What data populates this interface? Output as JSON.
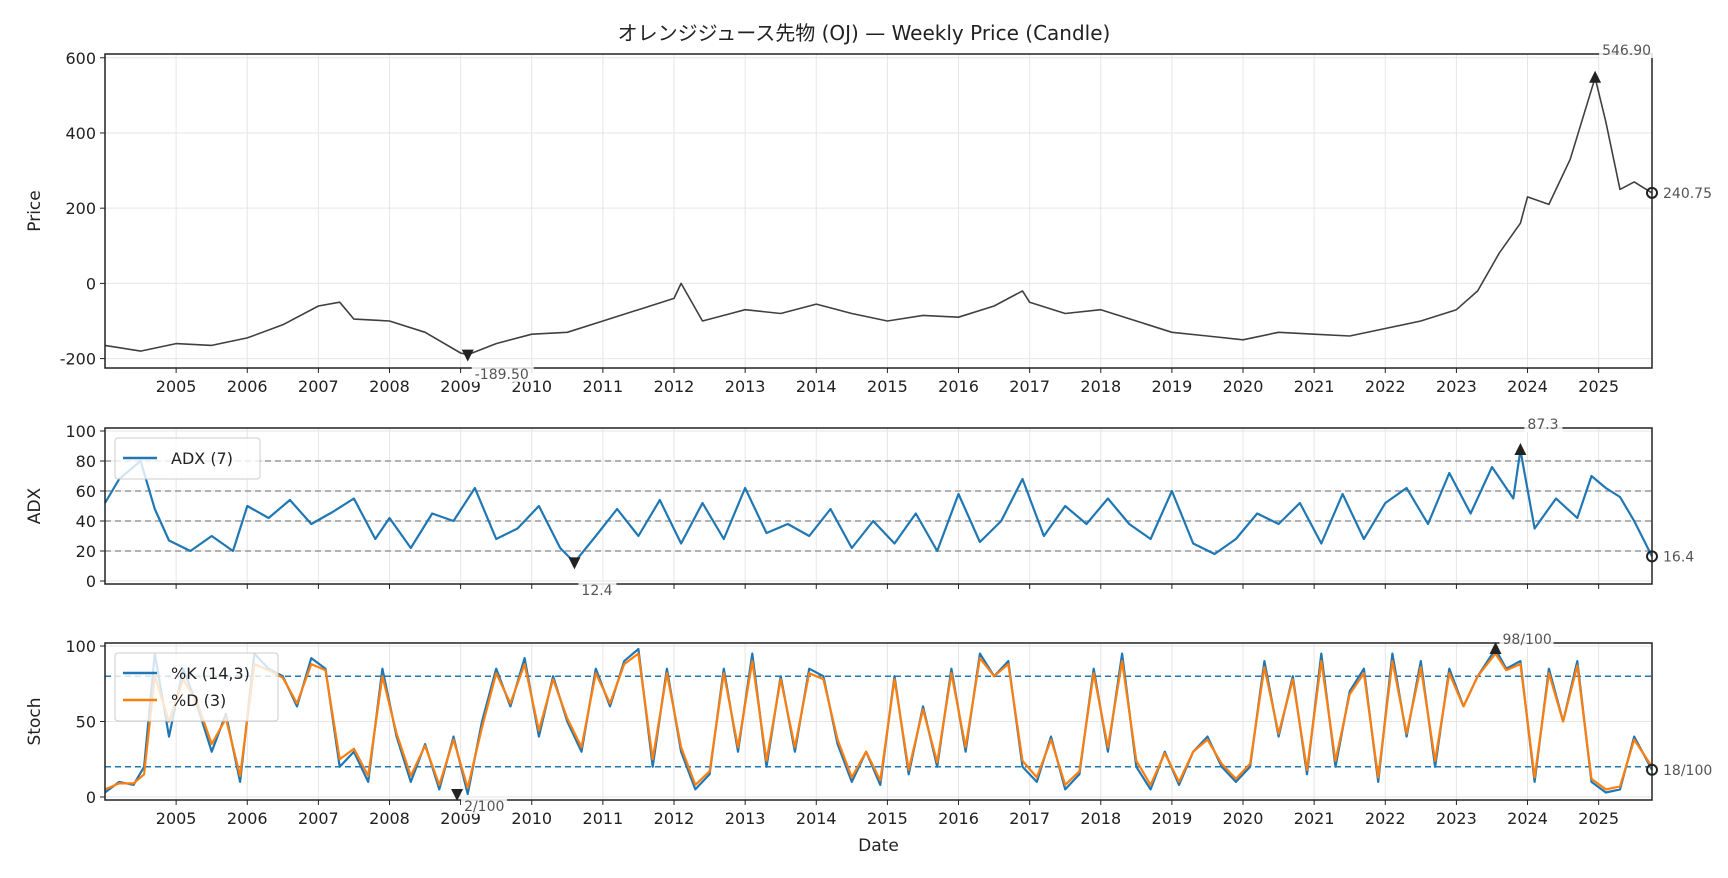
{
  "chart_data": [
    {
      "id": "price",
      "type": "line",
      "title": "オレンジジュース先物 (OJ) — Weekly Price (Candle)",
      "xlabel": "",
      "ylabel": "Price",
      "xlim": [
        2004.0,
        2025.75
      ],
      "ylim": [
        -225,
        610
      ],
      "yticks": [
        -200,
        0,
        200,
        400,
        600
      ],
      "ytick_labels": [
        "-200",
        "0",
        "200",
        "400",
        "600"
      ],
      "xticks": [
        2005,
        2006,
        2007,
        2008,
        2009,
        2010,
        2011,
        2012,
        2013,
        2014,
        2015,
        2016,
        2017,
        2018,
        2019,
        2020,
        2021,
        2022,
        2023,
        2024,
        2025
      ],
      "xtick_labels": [
        "2005",
        "2006",
        "2007",
        "2008",
        "2009",
        "2010",
        "2011",
        "2012",
        "2013",
        "2014",
        "2015",
        "2016",
        "2017",
        "2018",
        "2019",
        "2020",
        "2021",
        "2022",
        "2023",
        "2024",
        "2025"
      ],
      "grid": true,
      "color": "#404040",
      "series": [
        {
          "name": "OJ",
          "x": [
            2004.0,
            2004.5,
            2005.0,
            2005.5,
            2006.0,
            2006.5,
            2007.0,
            2007.3,
            2007.5,
            2008.0,
            2008.5,
            2009.0,
            2009.1,
            2009.5,
            2010.0,
            2010.5,
            2011.0,
            2011.5,
            2012.0,
            2012.1,
            2012.4,
            2012.8,
            2013.0,
            2013.5,
            2014.0,
            2014.5,
            2015.0,
            2015.5,
            2016.0,
            2016.5,
            2016.9,
            2017.0,
            2017.5,
            2018.0,
            2018.5,
            2019.0,
            2019.5,
            2020.0,
            2020.5,
            2021.0,
            2021.5,
            2022.0,
            2022.5,
            2023.0,
            2023.3,
            2023.6,
            2023.9,
            2024.0,
            2024.3,
            2024.6,
            2024.95,
            2025.1,
            2025.3,
            2025.5,
            2025.75
          ],
          "y": [
            -165,
            -180,
            -160,
            -165,
            -145,
            -110,
            -60,
            -50,
            -95,
            -100,
            -130,
            -185,
            -189.5,
            -160,
            -135,
            -130,
            -100,
            -70,
            -40,
            0,
            -100,
            -80,
            -70,
            -80,
            -55,
            -80,
            -100,
            -85,
            -90,
            -60,
            -20,
            -50,
            -80,
            -70,
            -100,
            -130,
            -140,
            -150,
            -130,
            -135,
            -140,
            -120,
            -100,
            -70,
            -20,
            80,
            160,
            230,
            210,
            330,
            546.9,
            430,
            250,
            270,
            240.75
          ]
        }
      ],
      "annotations": [
        {
          "label": "546.90",
          "x": 2024.95,
          "y": 546.9,
          "marker": "triangle-up",
          "kind": "max"
        },
        {
          "label": "-189.50",
          "x": 2009.1,
          "y": -189.5,
          "marker": "triangle-down",
          "kind": "min"
        },
        {
          "label": "240.75",
          "x": 2025.75,
          "y": 240.75,
          "marker": "circle",
          "kind": "last"
        }
      ]
    },
    {
      "id": "adx",
      "type": "line",
      "ylabel": "ADX",
      "xlim": [
        2004.0,
        2025.75
      ],
      "ylim": [
        -2,
        102
      ],
      "yticks": [
        0,
        20,
        40,
        60,
        80,
        100
      ],
      "ytick_labels": [
        "0",
        "20",
        "40",
        "60",
        "80",
        "100"
      ],
      "hlines": [
        20,
        40,
        60,
        80
      ],
      "grid": true,
      "legend": {
        "position": "top-left",
        "entries": [
          "ADX (7)"
        ]
      },
      "series": [
        {
          "name": "ADX (7)",
          "color": "#1f77b4",
          "x": [
            2004.0,
            2004.2,
            2004.5,
            2004.7,
            2004.9,
            2005.2,
            2005.5,
            2005.8,
            2006.0,
            2006.3,
            2006.6,
            2006.9,
            2007.2,
            2007.5,
            2007.8,
            2008.0,
            2008.3,
            2008.6,
            2008.9,
            2009.2,
            2009.5,
            2009.8,
            2010.1,
            2010.4,
            2010.6,
            2010.9,
            2011.2,
            2011.5,
            2011.8,
            2012.1,
            2012.4,
            2012.7,
            2013.0,
            2013.3,
            2013.6,
            2013.9,
            2014.2,
            2014.5,
            2014.8,
            2015.1,
            2015.4,
            2015.7,
            2016.0,
            2016.3,
            2016.6,
            2016.9,
            2017.2,
            2017.5,
            2017.8,
            2018.1,
            2018.4,
            2018.7,
            2019.0,
            2019.3,
            2019.6,
            2019.9,
            2020.2,
            2020.5,
            2020.8,
            2021.1,
            2021.4,
            2021.7,
            2022.0,
            2022.3,
            2022.6,
            2022.9,
            2023.2,
            2023.5,
            2023.8,
            2023.9,
            2024.1,
            2024.4,
            2024.7,
            2024.9,
            2025.1,
            2025.3,
            2025.5,
            2025.75
          ],
          "y": [
            52,
            68,
            80,
            48,
            27,
            20,
            30,
            20,
            50,
            42,
            54,
            38,
            46,
            55,
            28,
            42,
            22,
            45,
            40,
            62,
            28,
            35,
            50,
            22,
            12.4,
            30,
            48,
            30,
            54,
            25,
            52,
            28,
            62,
            32,
            38,
            30,
            48,
            22,
            40,
            25,
            45,
            20,
            58,
            26,
            40,
            68,
            30,
            50,
            38,
            55,
            38,
            28,
            60,
            25,
            18,
            28,
            45,
            38,
            52,
            25,
            58,
            28,
            52,
            62,
            38,
            72,
            45,
            76,
            55,
            87.3,
            35,
            55,
            42,
            70,
            62,
            56,
            40,
            16.4
          ]
        }
      ],
      "annotations": [
        {
          "label": "87.3",
          "x": 2023.9,
          "y": 87.3,
          "marker": "triangle-up",
          "kind": "max"
        },
        {
          "label": "12.4",
          "x": 2010.6,
          "y": 12.4,
          "marker": "triangle-down",
          "kind": "min"
        },
        {
          "label": "16.4",
          "x": 2025.75,
          "y": 16.4,
          "marker": "circle",
          "kind": "last"
        }
      ]
    },
    {
      "id": "stoch",
      "type": "line",
      "ylabel": "Stoch",
      "xlabel": "Date",
      "xlim": [
        2004.0,
        2025.75
      ],
      "ylim": [
        -2,
        102
      ],
      "yticks": [
        0,
        50,
        100
      ],
      "ytick_labels": [
        "0",
        "50",
        "100"
      ],
      "hlines": [
        20,
        80
      ],
      "grid": true,
      "xticks": [
        2005,
        2006,
        2007,
        2008,
        2009,
        2010,
        2011,
        2012,
        2013,
        2014,
        2015,
        2016,
        2017,
        2018,
        2019,
        2020,
        2021,
        2022,
        2023,
        2024,
        2025
      ],
      "xtick_labels": [
        "2005",
        "2006",
        "2007",
        "2008",
        "2009",
        "2010",
        "2011",
        "2012",
        "2013",
        "2014",
        "2015",
        "2016",
        "2017",
        "2018",
        "2019",
        "2020",
        "2021",
        "2022",
        "2023",
        "2024",
        "2025"
      ],
      "legend": {
        "position": "top-left",
        "entries": [
          "%K (14,3)",
          "%D (3)"
        ]
      },
      "series": [
        {
          "name": "%K (14,3)",
          "color": "#1f77b4",
          "x": [
            2004.0,
            2004.2,
            2004.4,
            2004.55,
            2004.7,
            2004.9,
            2005.1,
            2005.3,
            2005.5,
            2005.7,
            2005.9,
            2006.1,
            2006.3,
            2006.5,
            2006.7,
            2006.9,
            2007.1,
            2007.3,
            2007.5,
            2007.7,
            2007.9,
            2008.1,
            2008.3,
            2008.5,
            2008.7,
            2008.9,
            2009.1,
            2009.3,
            2009.5,
            2009.7,
            2009.9,
            2010.1,
            2010.3,
            2010.5,
            2010.7,
            2010.9,
            2011.1,
            2011.3,
            2011.5,
            2011.7,
            2011.9,
            2012.1,
            2012.3,
            2012.5,
            2012.7,
            2012.9,
            2013.1,
            2013.3,
            2013.5,
            2013.7,
            2013.9,
            2014.1,
            2014.3,
            2014.5,
            2014.7,
            2014.9,
            2015.1,
            2015.3,
            2015.5,
            2015.7,
            2015.9,
            2016.1,
            2016.3,
            2016.5,
            2016.7,
            2016.9,
            2017.1,
            2017.3,
            2017.5,
            2017.7,
            2017.9,
            2018.1,
            2018.3,
            2018.5,
            2018.7,
            2018.9,
            2019.1,
            2019.3,
            2019.5,
            2019.7,
            2019.9,
            2020.1,
            2020.3,
            2020.5,
            2020.7,
            2020.9,
            2021.1,
            2021.3,
            2021.5,
            2021.7,
            2021.9,
            2022.1,
            2022.3,
            2022.5,
            2022.7,
            2022.9,
            2023.1,
            2023.3,
            2023.55,
            2023.7,
            2023.9,
            2024.1,
            2024.3,
            2024.5,
            2024.7,
            2024.9,
            2025.1,
            2025.3,
            2025.5,
            2025.75
          ],
          "y": [
            3,
            10,
            8,
            20,
            95,
            40,
            85,
            60,
            30,
            55,
            10,
            95,
            85,
            80,
            60,
            92,
            85,
            20,
            30,
            10,
            85,
            40,
            10,
            35,
            5,
            40,
            2,
            50,
            85,
            60,
            92,
            40,
            80,
            50,
            30,
            85,
            60,
            90,
            98,
            20,
            85,
            30,
            5,
            15,
            85,
            30,
            95,
            20,
            80,
            30,
            85,
            80,
            35,
            10,
            30,
            8,
            80,
            15,
            60,
            20,
            85,
            30,
            95,
            80,
            90,
            20,
            10,
            40,
            5,
            15,
            85,
            30,
            95,
            20,
            5,
            30,
            8,
            30,
            40,
            20,
            10,
            20,
            90,
            40,
            80,
            15,
            95,
            20,
            70,
            85,
            10,
            95,
            40,
            90,
            20,
            85,
            60,
            80,
            98,
            85,
            90,
            10,
            85,
            50,
            90,
            10,
            3,
            5,
            40,
            18
          ]
        },
        {
          "name": "%D (3)",
          "color": "#ff7f0e",
          "x": [
            2004.0,
            2004.2,
            2004.4,
            2004.55,
            2004.7,
            2004.9,
            2005.1,
            2005.3,
            2005.5,
            2005.7,
            2005.9,
            2006.1,
            2006.3,
            2006.5,
            2006.7,
            2006.9,
            2007.1,
            2007.3,
            2007.5,
            2007.7,
            2007.9,
            2008.1,
            2008.3,
            2008.5,
            2008.7,
            2008.9,
            2009.1,
            2009.3,
            2009.5,
            2009.7,
            2009.9,
            2010.1,
            2010.3,
            2010.5,
            2010.7,
            2010.9,
            2011.1,
            2011.3,
            2011.5,
            2011.7,
            2011.9,
            2012.1,
            2012.3,
            2012.5,
            2012.7,
            2012.9,
            2013.1,
            2013.3,
            2013.5,
            2013.7,
            2013.9,
            2014.1,
            2014.3,
            2014.5,
            2014.7,
            2014.9,
            2015.1,
            2015.3,
            2015.5,
            2015.7,
            2015.9,
            2016.1,
            2016.3,
            2016.5,
            2016.7,
            2016.9,
            2017.1,
            2017.3,
            2017.5,
            2017.7,
            2017.9,
            2018.1,
            2018.3,
            2018.5,
            2018.7,
            2018.9,
            2019.1,
            2019.3,
            2019.5,
            2019.7,
            2019.9,
            2020.1,
            2020.3,
            2020.5,
            2020.7,
            2020.9,
            2021.1,
            2021.3,
            2021.5,
            2021.7,
            2021.9,
            2022.1,
            2022.3,
            2022.5,
            2022.7,
            2022.9,
            2023.1,
            2023.3,
            2023.55,
            2023.7,
            2023.9,
            2024.1,
            2024.3,
            2024.5,
            2024.7,
            2024.9,
            2025.1,
            2025.3,
            2025.5,
            2025.75
          ],
          "y": [
            5,
            9,
            9,
            15,
            80,
            50,
            78,
            62,
            35,
            52,
            14,
            88,
            84,
            79,
            62,
            88,
            84,
            25,
            32,
            14,
            80,
            42,
            14,
            34,
            8,
            38,
            6,
            46,
            82,
            62,
            88,
            44,
            78,
            52,
            33,
            82,
            62,
            88,
            95,
            25,
            82,
            33,
            8,
            17,
            82,
            33,
            90,
            24,
            78,
            33,
            82,
            78,
            38,
            13,
            30,
            11,
            78,
            18,
            58,
            23,
            82,
            33,
            92,
            80,
            88,
            24,
            13,
            38,
            8,
            17,
            82,
            33,
            90,
            24,
            8,
            29,
            10,
            30,
            38,
            22,
            12,
            22,
            86,
            42,
            78,
            18,
            90,
            24,
            68,
            82,
            13,
            90,
            42,
            86,
            24,
            82,
            60,
            80,
            95,
            84,
            88,
            13,
            82,
            50,
            87,
            12,
            5,
            7,
            38,
            20
          ]
        }
      ],
      "annotations": [
        {
          "label": "98/100",
          "x": 2023.55,
          "y": 98,
          "marker": "triangle-up",
          "kind": "max"
        },
        {
          "label": "2/100",
          "x": 2008.95,
          "y": 2,
          "marker": "triangle-down",
          "kind": "min"
        },
        {
          "label": "18/100",
          "x": 2025.75,
          "y": 18,
          "marker": "circle",
          "kind": "last"
        }
      ]
    }
  ]
}
